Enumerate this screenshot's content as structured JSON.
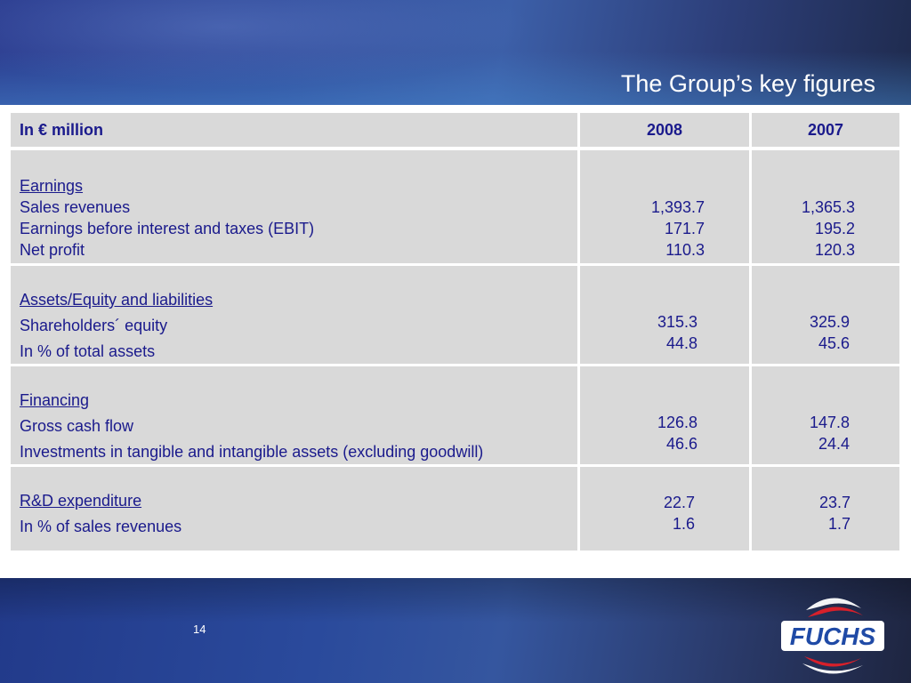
{
  "slide": {
    "title": "The Group’s key figures",
    "page_number": "14"
  },
  "logo": {
    "text": "FUCHS"
  },
  "table": {
    "header": {
      "label": "In € million",
      "col_2008": "2008",
      "col_2007": "2007"
    },
    "sections": [
      {
        "heading": "Earnings",
        "rows": [
          {
            "label": "Sales revenues",
            "v2008": "1,393.7",
            "v2007": "1,365.3"
          },
          {
            "label": "Earnings before interest and taxes (EBIT)",
            "v2008": "171.7",
            "v2007": "195.2"
          },
          {
            "label": "Net profit",
            "v2008": "110.3",
            "v2007": "120.3"
          }
        ]
      },
      {
        "heading": "Assets/Equity and liabilities",
        "rows": [
          {
            "label": "Shareholders´ equity",
            "v2008": "315.3",
            "v2007": "325.9"
          },
          {
            "label": "In % of total assets",
            "v2008": "44.8",
            "v2007": "45.6"
          }
        ]
      },
      {
        "heading": "Financing",
        "rows": [
          {
            "label": "Gross cash flow",
            "v2008": "126.8",
            "v2007": "147.8"
          },
          {
            "label": "Investments in tangible and intangible assets (excluding goodwill)",
            "v2008": "46.6",
            "v2007": "24.4"
          }
        ]
      },
      {
        "heading": "R&D expenditure",
        "rows": [
          {
            "label": "In % of sales revenues",
            "v2008": "22.7",
            "v2007": "23.7"
          }
        ],
        "extra_values": {
          "v2008": "1.6",
          "v2007": "1.7"
        }
      }
    ]
  }
}
